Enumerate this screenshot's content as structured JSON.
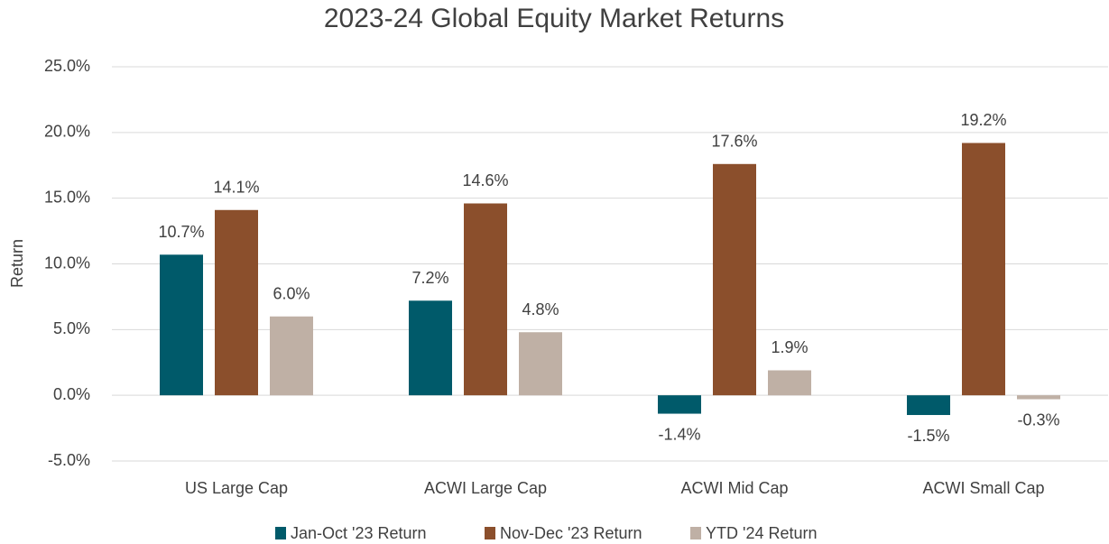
{
  "chart_data": {
    "type": "bar",
    "title": "2023-24 Global Equity Market Returns",
    "y_label": "Return",
    "categories": [
      "US Large Cap",
      "ACWI Large Cap",
      "ACWI Mid Cap",
      "ACWI Small Cap"
    ],
    "series": [
      {
        "name": "Jan-Oct '23 Return",
        "color": "#005a6a",
        "values": [
          10.7,
          7.2,
          -1.4,
          -1.5
        ],
        "value_labels": [
          "10.7%",
          "7.2%",
          "-1.4%",
          "-1.5%"
        ]
      },
      {
        "name": "Nov-Dec '23 Return",
        "color": "#8b4f2c",
        "values": [
          14.1,
          14.6,
          17.6,
          19.2
        ],
        "value_labels": [
          "14.1%",
          "14.6%",
          "17.6%",
          "19.2%"
        ]
      },
      {
        "name": "YTD '24 Return",
        "color": "#bfb0a5",
        "values": [
          6.0,
          4.8,
          1.9,
          -0.3
        ],
        "value_labels": [
          "6.0%",
          "4.8%",
          "1.9%",
          "-0.3%"
        ]
      }
    ],
    "ylim": [
      -5,
      25
    ],
    "yticks": [
      {
        "value": -5,
        "label": "-5.0%"
      },
      {
        "value": 0,
        "label": "0.0%"
      },
      {
        "value": 5,
        "label": "5.0%"
      },
      {
        "value": 10,
        "label": "10.0%"
      },
      {
        "value": 15,
        "label": "15.0%"
      },
      {
        "value": 20,
        "label": "20.0%"
      },
      {
        "value": 25,
        "label": "25.0%"
      }
    ],
    "grid": true,
    "legend": "bottom"
  }
}
